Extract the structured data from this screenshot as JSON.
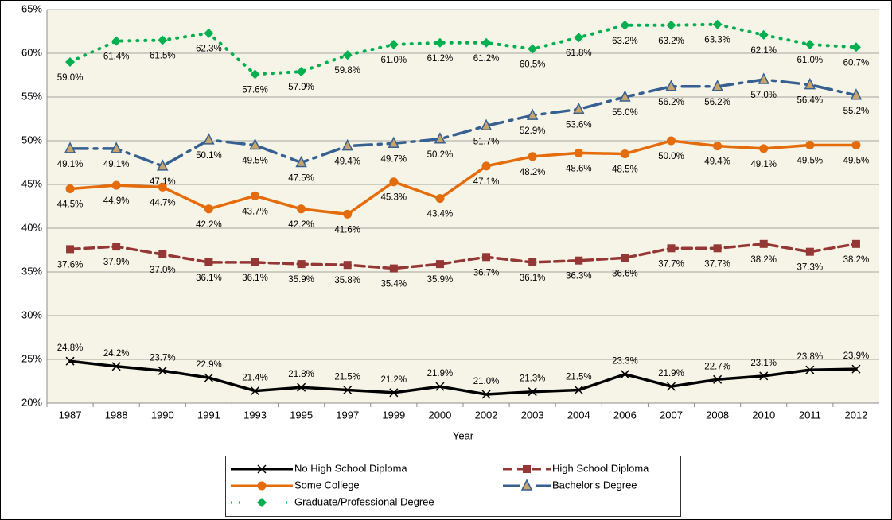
{
  "chart_data": {
    "type": "line",
    "x_label": "Year",
    "categories": [
      "1987",
      "1988",
      "1990",
      "1991",
      "1993",
      "1995",
      "1997",
      "1999",
      "2000",
      "2002",
      "2003",
      "2004",
      "2006",
      "2007",
      "2008",
      "2010",
      "2011",
      "2012"
    ],
    "ylim": [
      20,
      65
    ],
    "yticks": [
      {
        "value": 20,
        "label": "20%"
      },
      {
        "value": 25,
        "label": "25%"
      },
      {
        "value": 30,
        "label": "30%"
      },
      {
        "value": 35,
        "label": "35%"
      },
      {
        "value": 40,
        "label": "40%"
      },
      {
        "value": 45,
        "label": "45%"
      },
      {
        "value": 50,
        "label": "50%"
      },
      {
        "value": 55,
        "label": "55%"
      },
      {
        "value": 60,
        "label": "60%"
      },
      {
        "value": 65,
        "label": "65%"
      }
    ],
    "grid": true,
    "legend": "bottom",
    "series": [
      {
        "name": "No High School Diploma",
        "color": "#000000",
        "marker": "x",
        "dash": "solid",
        "values": [
          24.8,
          24.2,
          23.7,
          22.9,
          21.4,
          21.8,
          21.5,
          21.2,
          21.9,
          21.0,
          21.3,
          21.5,
          23.3,
          21.9,
          22.7,
          23.1,
          23.8,
          23.9
        ],
        "value_labels": [
          "24.8%",
          "24.2%",
          "23.7%",
          "22.9%",
          "21.4%",
          "21.8%",
          "21.5%",
          "21.2%",
          "21.9%",
          "21.0%",
          "21.3%",
          "21.5%",
          "23.3%",
          "21.9%",
          "22.7%",
          "23.1%",
          "23.8%",
          "23.9%"
        ]
      },
      {
        "name": "High School Diploma",
        "color": "#953735",
        "marker": "square",
        "dash": "dashed",
        "values": [
          37.6,
          37.9,
          37.0,
          36.1,
          36.1,
          35.9,
          35.8,
          35.4,
          35.9,
          36.7,
          36.1,
          36.3,
          36.6,
          37.7,
          37.7,
          38.2,
          37.3,
          38.2
        ],
        "value_labels": [
          "37.6%",
          "37.9%",
          "37.0%",
          "36.1%",
          "36.1%",
          "35.9%",
          "35.8%",
          "35.4%",
          "35.9%",
          "36.7%",
          "36.1%",
          "36.3%",
          "36.6%",
          "37.7%",
          "37.7%",
          "38.2%",
          "37.3%",
          "38.2%"
        ]
      },
      {
        "name": "Some College",
        "color": "#E46C0A",
        "marker": "circle",
        "dash": "solid",
        "values": [
          44.5,
          44.9,
          44.7,
          42.2,
          43.7,
          42.2,
          41.6,
          45.3,
          43.4,
          47.1,
          48.2,
          48.6,
          48.5,
          50.0,
          49.4,
          49.1,
          49.5,
          49.5
        ],
        "value_labels": [
          "44.5%",
          "44.9%",
          "44.7%",
          "42.2%",
          "43.7%",
          "42.2%",
          "41.6%",
          "45.3%",
          "43.4%",
          "47.1%",
          "48.2%",
          "48.6%",
          "48.5%",
          "50.0%",
          "49.4%",
          "49.1%",
          "49.5%",
          "49.5%"
        ]
      },
      {
        "name": "Bachelor's Degree",
        "color": "#376092",
        "marker": "triangle",
        "dash": "dashdot",
        "values": [
          49.1,
          49.1,
          47.1,
          50.1,
          49.5,
          47.5,
          49.4,
          49.7,
          50.2,
          51.7,
          52.9,
          53.6,
          55.0,
          56.2,
          56.2,
          57.0,
          56.4,
          55.2
        ],
        "value_labels": [
          "49.1%",
          "49.1%",
          "47.1%",
          "50.1%",
          "49.5%",
          "47.5%",
          "49.4%",
          "49.7%",
          "50.2%",
          "51.7%",
          "52.9%",
          "53.6%",
          "55.0%",
          "56.2%",
          "56.2%",
          "57.0%",
          "56.4%",
          "55.2%"
        ]
      },
      {
        "name": "Graduate/Professional Degree",
        "color": "#00B050",
        "marker": "diamond",
        "dash": "dotted",
        "values": [
          59.0,
          61.4,
          61.5,
          62.3,
          57.6,
          57.9,
          59.8,
          61.0,
          61.2,
          61.2,
          60.5,
          61.8,
          63.2,
          63.2,
          63.3,
          62.1,
          61.0,
          60.7
        ],
        "value_labels": [
          "59.0%",
          "61.4%",
          "61.5%",
          "62.3%",
          "57.6%",
          "57.9%",
          "59.8%",
          "61.0%",
          "61.2%",
          "61.2%",
          "60.5%",
          "61.8%",
          "63.2%",
          "63.2%",
          "63.3%",
          "62.1%",
          "61.0%",
          "60.7%"
        ]
      }
    ]
  }
}
